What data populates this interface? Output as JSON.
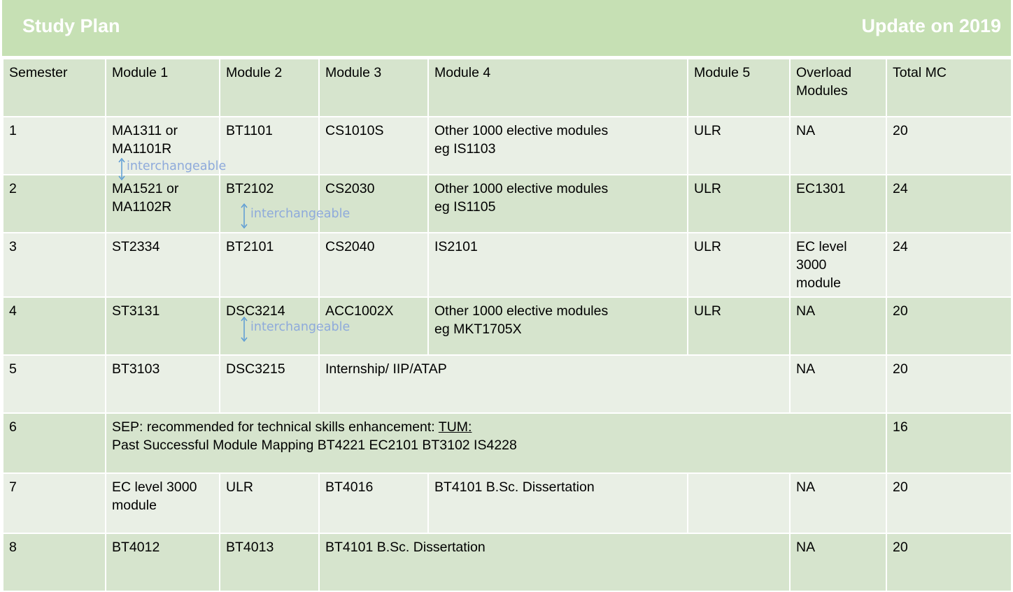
{
  "title": {
    "left": "Study Plan",
    "right": "Update on 2019"
  },
  "headers": [
    "Semester",
    "Module 1",
    "Module 2",
    "Module 3",
    "Module 4",
    "Module 5",
    "Overload Modules",
    "Total MC"
  ],
  "rows": {
    "r1": {
      "sem": "1",
      "m1a": "MA1311 or",
      "m1b": "MA1101R",
      "m2": "BT1101",
      "m3": "CS1010S",
      "m4a": "Other 1000 elective modules",
      "m4b": "eg IS1103",
      "m5": "ULR",
      "over": "NA",
      "mc": "20"
    },
    "r2": {
      "sem": "2",
      "m1a": "MA1521 or",
      "m1b": "MA1102R",
      "m2": "BT2102",
      "m3": "CS2030",
      "m4a": "Other 1000 elective modules",
      "m4b": "eg IS1105",
      "m5": "ULR",
      "over": "EC1301",
      "mc": "24"
    },
    "r3": {
      "sem": "3",
      "m1": "ST2334",
      "m2": "BT2101",
      "m3": "CS2040",
      "m4": "IS2101",
      "m5": "ULR",
      "over_a": "EC level",
      "over_b": "3000",
      "over_c": "module",
      "mc": "24"
    },
    "r4": {
      "sem": "4",
      "m1": "ST3131",
      "m2": "DSC3214",
      "m3": "ACC1002X",
      "m4a": "Other 1000 elective modules",
      "m4b": "eg MKT1705X",
      "m5": "ULR",
      "over": "NA",
      "mc": "20"
    },
    "r5": {
      "sem": "5",
      "m1": "BT3103",
      "m2": "DSC3215",
      "m3": "Internship/ IIP/ATAP",
      "over": "NA",
      "mc": "20"
    },
    "r6": {
      "sem": "6",
      "line1": "SEP: recommended for technical skills enhancement: ",
      "tum": "TUM:",
      "line2": "Past Successful Module Mapping BT4221 EC2101 BT3102 IS4228",
      "mc": "16"
    },
    "r7": {
      "sem": "7",
      "m1a": "EC level 3000",
      "m1b": "module",
      "m2": "ULR",
      "m3": "BT4016",
      "m4": "BT4101 B.Sc. Dissertation",
      "m5": "",
      "over": "NA",
      "mc": "20"
    },
    "r8": {
      "sem": "8",
      "m1": "BT4012",
      "m2": "BT4013",
      "m3": "BT4101 B.Sc. Dissertation",
      "over": "NA",
      "mc": "20"
    }
  },
  "annotations": {
    "a1": "interchangeable",
    "a2": "interchangeable",
    "a3": "interchangeable"
  },
  "colors": {
    "header_green": "#c6e0b4",
    "row_dark": "#d6e4cd",
    "row_light": "#e9efe5",
    "highlight": "#ff0000",
    "annotation": "#8eaadb"
  }
}
